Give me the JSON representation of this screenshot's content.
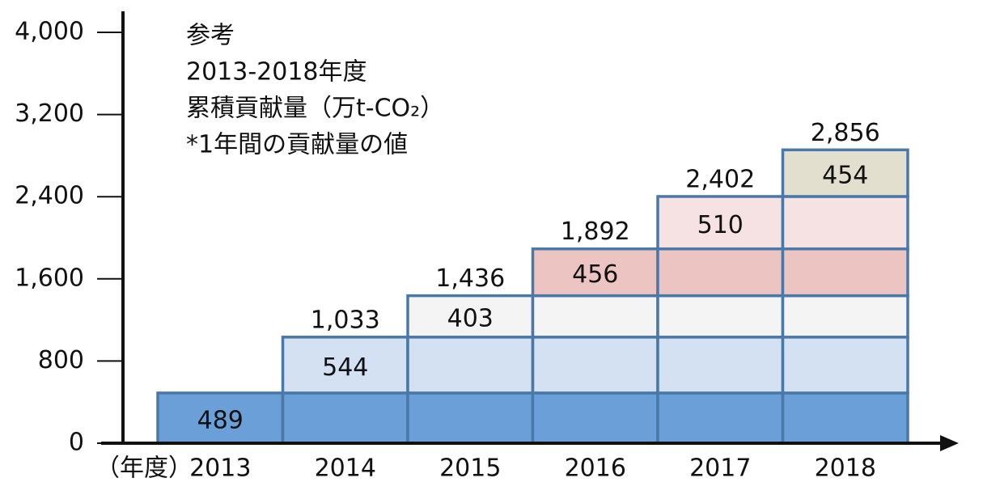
{
  "chart_data": {
    "type": "stacked_bar",
    "annotations": [
      "参考",
      "2013-2018年度",
      "累積貢献量（万t-CO₂）",
      "*1年間の貢献量の値"
    ],
    "x_label": "（年度）",
    "categories": [
      "2013",
      "2014",
      "2015",
      "2016",
      "2017",
      "2018"
    ],
    "series": [
      {
        "color": "#6a9fd8",
        "values": [
          489,
          489,
          489,
          489,
          489,
          489
        ]
      },
      {
        "color": "#d3e1f2",
        "values": [
          null,
          544,
          544,
          544,
          544,
          544
        ]
      },
      {
        "color": "#f4f4f4",
        "values": [
          null,
          null,
          403,
          403,
          403,
          403
        ]
      },
      {
        "color": "#ecc4c2",
        "values": [
          null,
          null,
          null,
          456,
          456,
          456
        ]
      },
      {
        "color": "#f6e2e2",
        "values": [
          null,
          null,
          null,
          null,
          510,
          510
        ]
      },
      {
        "color": "#e3dfcf",
        "values": [
          null,
          null,
          null,
          null,
          null,
          454
        ]
      }
    ],
    "totals": [
      null,
      1033,
      1436,
      1892,
      2402,
      2856
    ],
    "total_labels": [
      null,
      "1,033",
      "1,436",
      "1,892",
      "2,402",
      "2,856"
    ],
    "bar_edge_color": "#4a78a8",
    "ylim": [
      0,
      4000
    ],
    "yticks": [
      0,
      {
        "value": 800,
        "label": "800"
      },
      {
        "value": 1600,
        "label": "1,600"
      },
      {
        "value": 2400,
        "label": "2,400"
      },
      {
        "value": 3200,
        "label": "3,200"
      },
      {
        "value": 4000,
        "label": "4,000"
      }
    ]
  }
}
